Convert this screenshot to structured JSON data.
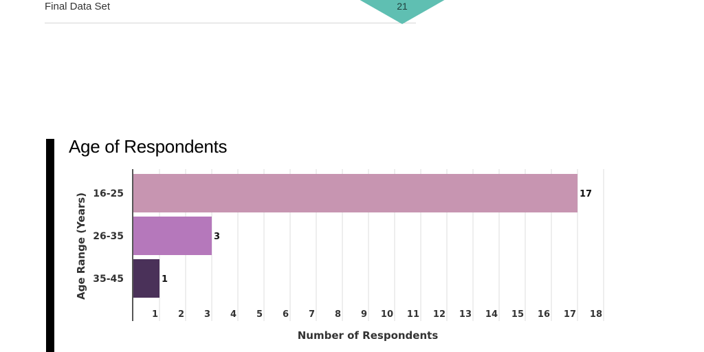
{
  "header": {
    "section_label": "Final Data Set",
    "page_number": "21"
  },
  "colors": {
    "marker": "#5fbfb2",
    "side_bar": "#000000",
    "grid": "#dcdcdc",
    "axis": "#555555"
  },
  "chart_data": {
    "type": "bar",
    "orientation": "horizontal",
    "title": "Age of Respondents",
    "xlabel": "Number of Respondents",
    "ylabel": "Age Range (Years)",
    "categories": [
      "16-25",
      "26-35",
      "35-45"
    ],
    "values": [
      17,
      3,
      1
    ],
    "data_labels": [
      "17",
      "3",
      "1"
    ],
    "bar_colors": [
      "#c795b1",
      "#b578bb",
      "#4a3159"
    ],
    "xlim": [
      0,
      18
    ],
    "xticks": [
      "1",
      "2",
      "3",
      "4",
      "5",
      "6",
      "7",
      "8",
      "9",
      "10",
      "11",
      "12",
      "13",
      "14",
      "15",
      "16",
      "17",
      "18"
    ],
    "grid": true,
    "legend": "none"
  }
}
